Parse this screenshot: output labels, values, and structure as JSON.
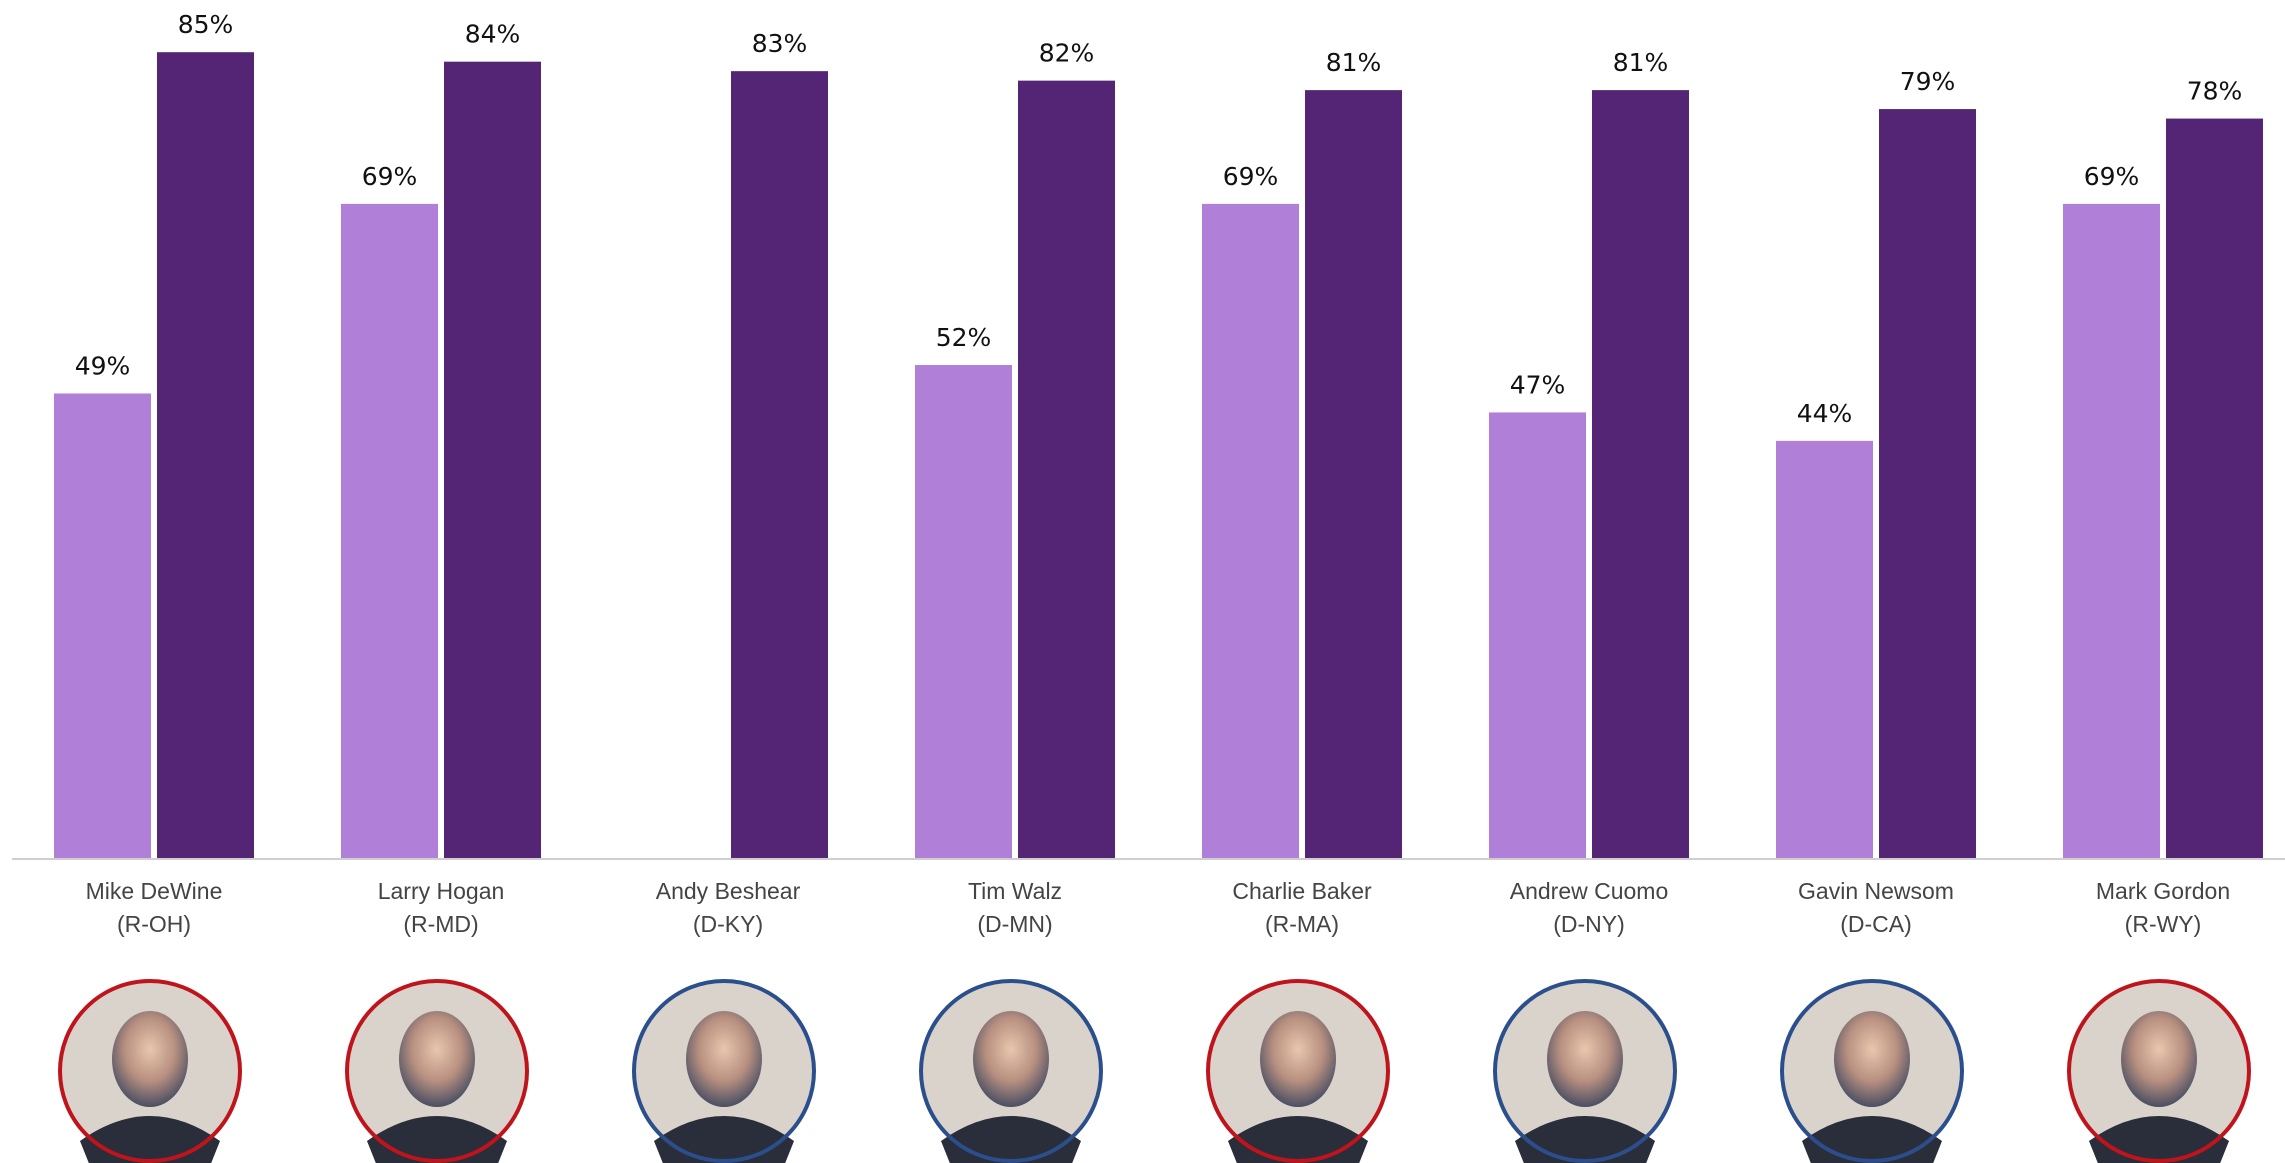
{
  "chart_data": {
    "type": "bar",
    "categories": [
      "Mike DeWine",
      "Larry Hogan",
      "Andy Beshear",
      "Tim Walz",
      "Charlie Baker",
      "Andrew Cuomo",
      "Gavin Newsom",
      "Mark Gordon"
    ],
    "category_states": [
      "(R-OH)",
      "(R-MD)",
      "(D-KY)",
      "(D-MN)",
      "(R-MA)",
      "(D-NY)",
      "(D-CA)",
      "(R-WY)"
    ],
    "photo_ring_colors": [
      "#c0141c",
      "#c0141c",
      "#2b4f8c",
      "#2b4f8c",
      "#c0141c",
      "#2b4f8c",
      "#2b4f8c",
      "#c0141c"
    ],
    "series": [
      {
        "color": "#b07fd8",
        "values": [
          49,
          69,
          null,
          52,
          69,
          47,
          44,
          69
        ],
        "value_labels": [
          "49%",
          "69%",
          null,
          "52%",
          "69%",
          "47%",
          "44%",
          "69%"
        ]
      },
      {
        "color": "#542475",
        "values": [
          85,
          84,
          83,
          82,
          81,
          81,
          79,
          78
        ],
        "value_labels": [
          "85%",
          "84%",
          "83%",
          "82%",
          "81%",
          "81%",
          "79%",
          "78%"
        ]
      }
    ],
    "ylim": [
      0,
      100
    ]
  }
}
